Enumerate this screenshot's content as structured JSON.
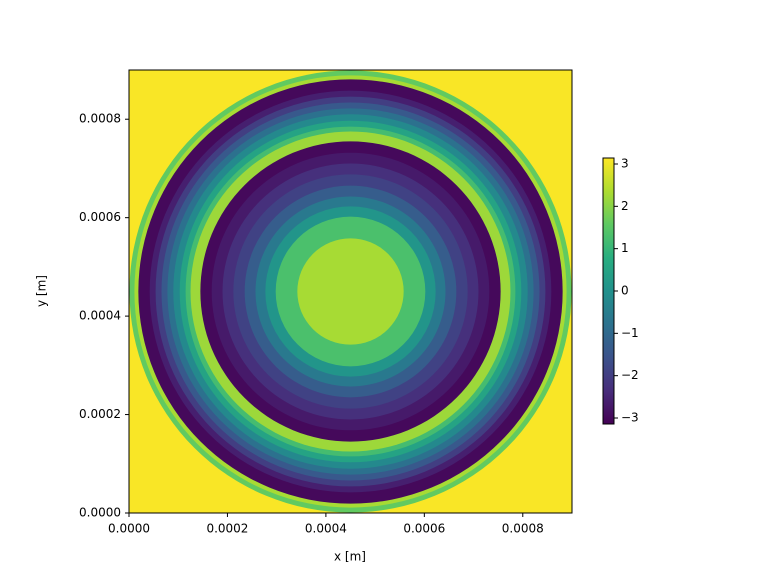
{
  "chart_data": {
    "type": "ring-image",
    "colormap": "viridis",
    "xlabel": "x [m]",
    "ylabel": "y [m]",
    "xlim": [
      0,
      0.0009
    ],
    "ylim": [
      0,
      0.0009
    ],
    "xticks": [
      {
        "value": 0,
        "label": "0.0000"
      },
      {
        "value": 0.0002,
        "label": "0.0002"
      },
      {
        "value": 0.0004,
        "label": "0.0004"
      },
      {
        "value": 0.0006,
        "label": "0.0006"
      },
      {
        "value": 0.0008,
        "label": "0.0008"
      }
    ],
    "yticks": [
      {
        "value": 0,
        "label": "0.0000"
      },
      {
        "value": 0.0002,
        "label": "0.0002"
      },
      {
        "value": 0.0004,
        "label": "0.0004"
      },
      {
        "value": 0.0006,
        "label": "0.0006"
      },
      {
        "value": 0.0008,
        "label": "0.0008"
      }
    ],
    "clim": [
      -3.14159,
      3.14159
    ],
    "cticks": [
      {
        "value": -3,
        "label": "−3"
      },
      {
        "value": -2,
        "label": "−2"
      },
      {
        "value": -1,
        "label": "−1"
      },
      0,
      1,
      2,
      3
    ],
    "center": [
      0.00045,
      0.00045
    ],
    "background_value": 3.1,
    "rings": [
      {
        "radius": 0.000449,
        "value": 1.6
      },
      {
        "radius": 0.000439,
        "value": 2.3
      },
      {
        "radius": 0.000431,
        "value": -3.0
      },
      {
        "radius": 0.000408,
        "value": -2.6
      },
      {
        "radius": 0.000396,
        "value": -2.0
      },
      {
        "radius": 0.000384,
        "value": -1.4
      },
      {
        "radius": 0.000372,
        "value": -0.8
      },
      {
        "radius": 0.00036,
        "value": -0.2
      },
      {
        "radius": 0.000347,
        "value": 0.5
      },
      {
        "radius": 0.000335,
        "value": 1.2
      },
      {
        "radius": 0.000325,
        "value": 2.2
      },
      {
        "radius": 0.000305,
        "value": -3.0
      },
      {
        "radius": 0.000282,
        "value": -2.7
      },
      {
        "radius": 0.00026,
        "value": -2.3
      },
      {
        "radius": 0.000238,
        "value": -1.9
      },
      {
        "radius": 0.000215,
        "value": -1.3
      },
      {
        "radius": 0.000193,
        "value": -0.6
      },
      {
        "radius": 0.000173,
        "value": 0.1
      },
      {
        "radius": 0.000152,
        "value": 1.3
      },
      {
        "radius": 0.000108,
        "value": 2.3
      }
    ]
  }
}
